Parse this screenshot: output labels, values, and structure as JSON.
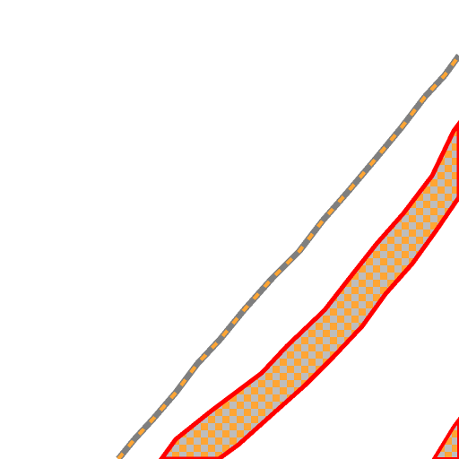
{
  "canvas": {
    "background": "#ffffff"
  },
  "colors": {
    "outline_red": "#ff0000",
    "fill_orange": "#ffa533",
    "fill_gray": "#bdbdbd",
    "thin_stroke_gray": "#7f7f7f",
    "thin_stroke_orange": "#ffa533"
  },
  "icons": {
    "checker_fill": "checkerboard-pattern-icon"
  }
}
